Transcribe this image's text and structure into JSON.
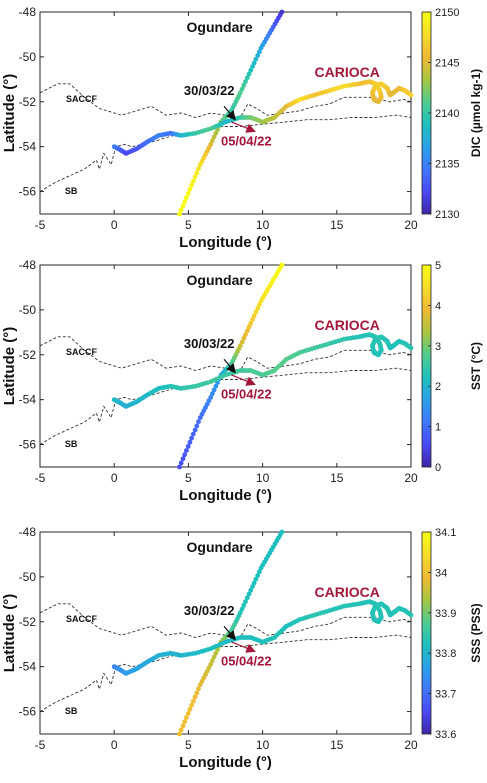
{
  "colors": {
    "accent_red": "#a3173a",
    "front_line": "#333333",
    "colormap": [
      "#3e26a8",
      "#4a49f5",
      "#3f78fb",
      "#2aa1e7",
      "#1ec0bd",
      "#51cc8e",
      "#a9c53f",
      "#f0b934",
      "#f6dd2a",
      "#f9fb15"
    ]
  },
  "chart_data": [
    {
      "type": "scatter",
      "xlabel": "Longitude (°)",
      "ylabel": "Latitude (°)",
      "xlim": [
        -5,
        20
      ],
      "ylim": [
        -57,
        -48
      ],
      "xticks": [
        "-5",
        "0",
        "5",
        "10",
        "15",
        "20"
      ],
      "yticks": [
        "-48",
        "-50",
        "-52",
        "-54",
        "-56"
      ],
      "grid": false,
      "colorbar": {
        "label": "DIC (µmol kg-1)",
        "range": [
          2130,
          2150
        ],
        "ticks": [
          "2130",
          "2135",
          "2140",
          "2145",
          "2150"
        ]
      },
      "annotations": {
        "ogundare": "Ogundare",
        "carioca": "CARIOCA",
        "date1": "30/03/22",
        "date2": "05/04/22",
        "saccf": "SACCF",
        "sb": "SB"
      },
      "ogundare_values": [
        2150,
        2150,
        2148,
        2145,
        2142,
        2140,
        2141,
        2139,
        2137,
        2134,
        2131
      ],
      "carioca_values": [
        2135,
        2134,
        2132,
        2133,
        2134,
        2135,
        2134,
        2138,
        2140,
        2141,
        2138,
        2140,
        2142,
        2143,
        2144,
        2145,
        2148,
        2146,
        2147,
        2148,
        2146
      ]
    },
    {
      "type": "scatter",
      "xlabel": "Longitude (°)",
      "ylabel": "Latitude (°)",
      "xlim": [
        -5,
        20
      ],
      "ylim": [
        -57,
        -48
      ],
      "xticks": [
        "-5",
        "0",
        "5",
        "10",
        "15",
        "20"
      ],
      "yticks": [
        "-48",
        "-50",
        "-52",
        "-54",
        "-56"
      ],
      "grid": false,
      "colorbar": {
        "label": "SST (°C)",
        "range": [
          0,
          5
        ],
        "ticks": [
          "0",
          "1",
          "2",
          "3",
          "4",
          "5"
        ]
      },
      "annotations": {
        "ogundare": "Ogundare",
        "carioca": "CARIOCA",
        "date1": "30/03/22",
        "date2": "05/04/22",
        "saccf": "SACCF",
        "sb": "SB"
      },
      "ogundare_values": [
        0.6,
        0.8,
        1.0,
        1.3,
        1.7,
        2.6,
        3.6,
        4.1,
        4.5,
        4.8,
        5.0
      ],
      "carioca_values": [
        2.2,
        2.0,
        1.9,
        2.0,
        2.1,
        2.2,
        2.3,
        2.4,
        2.5,
        2.6,
        2.5,
        2.6,
        2.7,
        2.7,
        2.8,
        2.8,
        2.7,
        2.6,
        2.5,
        2.4,
        2.3
      ]
    },
    {
      "type": "scatter",
      "xlabel": "Longitude (°)",
      "ylabel": "Latitude (°)",
      "xlim": [
        -5,
        20
      ],
      "ylim": [
        -57,
        -48
      ],
      "xticks": [
        "-5",
        "0",
        "5",
        "10",
        "15",
        "20"
      ],
      "yticks": [
        "-48",
        "-50",
        "-52",
        "-54",
        "-56"
      ],
      "grid": false,
      "colorbar": {
        "label": "SSS (PSS)",
        "range": [
          33.6,
          34.1
        ],
        "ticks": [
          "33.6",
          "33.7",
          "33.8",
          "33.9",
          "34",
          "34.1"
        ]
      },
      "annotations": {
        "ogundare": "Ogundare",
        "carioca": "CARIOCA",
        "date1": "30/03/22",
        "date2": "05/04/22",
        "saccf": "SACCF",
        "sb": "SB"
      },
      "ogundare_values": [
        34.0,
        34.0,
        33.98,
        33.96,
        33.93,
        33.87,
        33.83,
        33.82,
        33.82,
        33.82,
        33.82
      ],
      "carioca_values": [
        33.72,
        33.74,
        33.76,
        33.77,
        33.78,
        33.79,
        33.8,
        33.8,
        33.81,
        33.82,
        33.81,
        33.82,
        33.82,
        33.82,
        33.83,
        33.82,
        33.83,
        33.84,
        33.83,
        33.83,
        33.83
      ]
    }
  ],
  "tracks": {
    "ogundare": {
      "lon": [
        4.4,
        5.1,
        5.8,
        6.5,
        7.2,
        7.9,
        8.5,
        9.2,
        9.9,
        10.6,
        11.3
      ],
      "lat": [
        -57.0,
        -55.9,
        -54.8,
        -53.9,
        -52.9,
        -52.4,
        -51.6,
        -50.6,
        -49.6,
        -48.8,
        -48.0
      ]
    },
    "carioca": {
      "lon": [
        0.0,
        0.3,
        0.8,
        1.5,
        2.2,
        3.0,
        3.8,
        4.5,
        5.5,
        6.5,
        7.5,
        8.5,
        9.2,
        10.0,
        10.8,
        11.6,
        12.5,
        13.5,
        14.5,
        15.5,
        16.5
      ],
      "lat": [
        -54.0,
        -54.1,
        -54.3,
        -54.1,
        -53.8,
        -53.5,
        -53.4,
        -53.5,
        -53.4,
        -53.2,
        -52.9,
        -52.7,
        -52.7,
        -52.9,
        -52.7,
        -52.2,
        -51.9,
        -51.7,
        -51.5,
        -51.3,
        -51.2
      ]
    },
    "loop": {
      "lon": [
        16.8,
        17.2,
        17.6,
        17.9,
        18.0,
        17.8,
        17.5,
        17.4,
        17.6,
        18.0,
        18.4,
        18.6,
        18.8,
        19.2,
        19.6,
        20.0
      ]
    },
    "loop_lat": [
      -51.2,
      -51.1,
      -51.2,
      -51.5,
      -51.8,
      -52.0,
      -51.9,
      -51.6,
      -51.3,
      -51.2,
      -51.4,
      -51.7,
      -51.6,
      -51.4,
      -51.5,
      -51.7
    ]
  },
  "fronts": {
    "saccf": {
      "lon": [
        -5.0,
        -3.8,
        -3.0,
        -2.0,
        -1.0,
        0.5,
        1.5,
        2.5,
        3.5,
        4.5,
        5.5,
        6.5,
        7.5,
        8.5,
        9.0,
        9.6,
        10.3,
        11.5,
        12.5,
        13.5,
        14.5,
        15.5,
        16.5,
        17.5,
        18.5,
        19.5,
        20.0
      ],
      "lat": [
        -51.6,
        -51.2,
        -51.2,
        -51.8,
        -52.3,
        -52.6,
        -52.4,
        -52.2,
        -52.6,
        -52.5,
        -52.7,
        -52.5,
        -52.6,
        -52.7,
        -52.1,
        -52.3,
        -52.6,
        -52.5,
        -52.4,
        -52.2,
        -52.1,
        -51.8,
        -51.8,
        -51.8,
        -52.0,
        -51.9,
        -52.0
      ]
    },
    "sb": {
      "lon": [
        -5.0,
        -4.0,
        -3.0,
        -2.0,
        -1.2,
        -1.0,
        -0.7,
        -0.2,
        0.1,
        0.7,
        1.2,
        2.5,
        4.0,
        5.5,
        7.0,
        8.5,
        10.0,
        11.5,
        13.0,
        14.5,
        16.0,
        17.5,
        19.0,
        20.0
      ],
      "lat": [
        -56.0,
        -55.6,
        -55.3,
        -55.0,
        -54.6,
        -55.0,
        -54.3,
        -54.8,
        -54.0,
        -53.9,
        -54.0,
        -53.8,
        -53.5,
        -53.4,
        -53.1,
        -53.1,
        -53.0,
        -52.9,
        -52.8,
        -52.8,
        -52.7,
        -52.7,
        -52.6,
        -52.7
      ]
    }
  }
}
